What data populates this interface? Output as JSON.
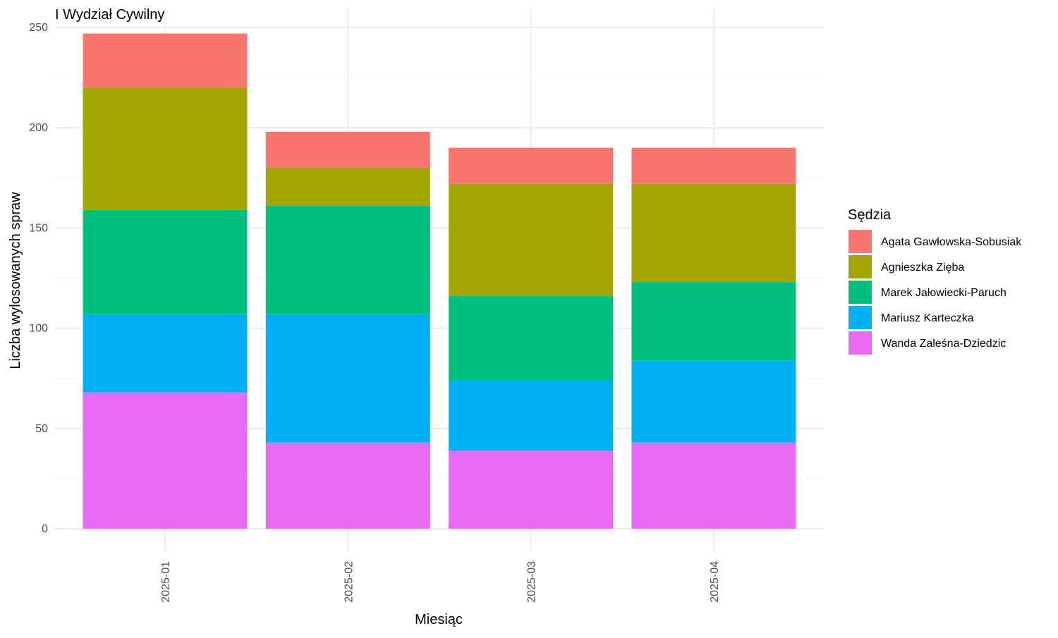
{
  "chart_data": {
    "type": "bar",
    "stacked": true,
    "title": "I Wydział Cywilny",
    "xlabel": "Miesiąc",
    "ylabel": "Liczba wylosowanych spraw",
    "categories": [
      "2025-01",
      "2025-02",
      "2025-03",
      "2025-04"
    ],
    "ylim": [
      0,
      250
    ],
    "yticks": [
      0,
      50,
      100,
      150,
      200,
      250
    ],
    "grid": true,
    "legend": {
      "title": "Sędzia",
      "position": "right"
    },
    "series": [
      {
        "name": "Agata Gawłowska-Sobusiak",
        "color": "#F8766D",
        "values": [
          27,
          18,
          18,
          18
        ]
      },
      {
        "name": "Agnieszka Zięba",
        "color": "#A3A500",
        "values": [
          61,
          19,
          56,
          49
        ]
      },
      {
        "name": "Marek Jałowiecki-Paruch",
        "color": "#00BF7D",
        "values": [
          52,
          54,
          42,
          39
        ]
      },
      {
        "name": "Mariusz Karteczka",
        "color": "#00B0F6",
        "values": [
          39,
          64,
          35,
          41
        ]
      },
      {
        "name": "Wanda Zaleśna-Dziedzic",
        "color": "#E76BF3",
        "values": [
          68,
          43,
          39,
          43
        ]
      }
    ]
  }
}
